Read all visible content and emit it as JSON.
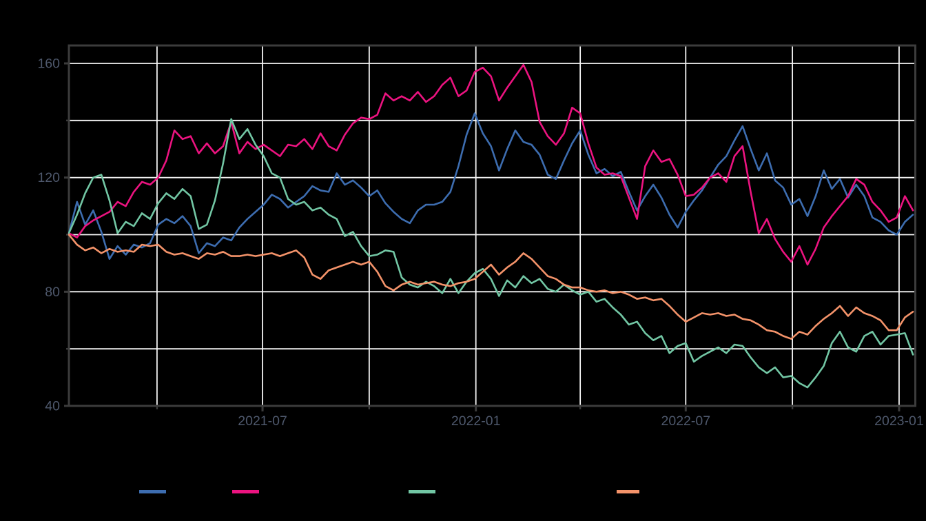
{
  "figure": {
    "background_color": "#000000",
    "grid_color": "#f5f5f5",
    "spine_color": "#3c3c3c",
    "tick_label_color": "#4e586c"
  },
  "chart_data": {
    "type": "line",
    "title": "",
    "x_axis": {
      "tick_labels": [
        "2021-07",
        "2022-01",
        "2022-07",
        "2023-01"
      ],
      "tick_days": [
        167,
        351,
        532,
        716
      ],
      "minor_tick_days": [
        76,
        259,
        441,
        624
      ],
      "start_day": 0,
      "end_day": 730,
      "sample_step_days": 7
    },
    "y_axis": {
      "tick_labels": [
        "40",
        "80",
        "120",
        "160"
      ],
      "tick_values": [
        40,
        80,
        120,
        160
      ],
      "minor_tick_values": [
        60,
        100,
        140
      ],
      "range": [
        40,
        166.4
      ]
    },
    "grid": "on",
    "legend": {
      "position": "bottom",
      "items": [
        {
          "label": "",
          "color": "#3d6db0",
          "swatch_x": 202,
          "swatch_w": 39
        },
        {
          "label": "",
          "color": "#ec1380",
          "swatch_x": 337,
          "swatch_w": 39
        },
        {
          "label": "",
          "color": "#72c6a4",
          "swatch_x": 593,
          "swatch_w": 39
        },
        {
          "label": "",
          "color": "#f4936a",
          "swatch_x": 895,
          "swatch_w": 33
        }
      ]
    },
    "series": [
      {
        "name": "series-blue",
        "color": "#3d6db0",
        "values": [
          100.5,
          111.5,
          103.5,
          108.5,
          101,
          91.5,
          96,
          93,
          96.5,
          95.5,
          97,
          103.5,
          105.5,
          104,
          106.5,
          103,
          93.5,
          97,
          96,
          99,
          98,
          102.5,
          105.5,
          108,
          110.5,
          114,
          112.5,
          109.5,
          111.5,
          113.5,
          117,
          115.5,
          115,
          121.5,
          117.5,
          119,
          116.5,
          113.5,
          115.5,
          111,
          108,
          105.5,
          104,
          108.5,
          110.5,
          110.5,
          111.5,
          115,
          124,
          135,
          142.5,
          135.5,
          131,
          122.5,
          130,
          136.5,
          132.5,
          131.5,
          128,
          121,
          119.5,
          126,
          132,
          136.5,
          128,
          121.5,
          123,
          120.5,
          122,
          115,
          108.5,
          113.5,
          117.5,
          113,
          107,
          102.5,
          108,
          112,
          115.5,
          120,
          124.5,
          127.5,
          133,
          138,
          130,
          122.5,
          128.5,
          119,
          116.5,
          110.5,
          112.5,
          106.5,
          113.5,
          122.5,
          116,
          119.5,
          113,
          117.5,
          113.5,
          106,
          104.5,
          101.5,
          100,
          104.5,
          107
        ]
      },
      {
        "name": "series-magenta",
        "color": "#ec1380",
        "values": [
          100.5,
          99,
          103,
          105,
          106.5,
          108,
          111.5,
          110,
          115,
          118.5,
          117.5,
          120,
          126,
          136.5,
          133.5,
          134.5,
          128.5,
          132,
          128.5,
          131,
          139.5,
          128.5,
          132.5,
          130,
          131.5,
          129.5,
          127.5,
          131.5,
          131,
          133.5,
          130,
          135.5,
          131,
          129.5,
          135,
          139,
          141,
          140.5,
          142,
          149.5,
          147,
          148.5,
          147,
          150,
          146.5,
          148.5,
          152.5,
          155,
          148.5,
          150.5,
          157,
          158.5,
          155.5,
          147,
          151.5,
          155.5,
          159.5,
          153.5,
          139.5,
          134.5,
          131.5,
          135.5,
          144.5,
          142.5,
          132,
          123.5,
          121,
          121.5,
          120.5,
          113,
          105.5,
          124,
          129.5,
          125.5,
          126.5,
          121,
          113.5,
          114,
          116.5,
          120,
          121.5,
          118.5,
          127.5,
          131,
          115,
          100.5,
          105.5,
          98.5,
          94,
          90.5,
          96,
          89.5,
          95,
          102.5,
          106.5,
          110,
          113.5,
          119.5,
          117.5,
          111.5,
          108.5,
          104.5,
          106,
          113.5,
          108.5
        ]
      },
      {
        "name": "series-green",
        "color": "#72c6a4",
        "values": [
          100.5,
          107,
          114.5,
          120,
          121,
          112,
          100.5,
          104.5,
          103,
          107.5,
          105.5,
          111,
          114.5,
          112.5,
          116,
          113.5,
          102,
          103.5,
          112,
          125,
          140.5,
          133.5,
          137,
          131.5,
          127.5,
          121.5,
          120,
          112.5,
          110.5,
          111.5,
          108.5,
          109.5,
          107,
          105.5,
          99.5,
          101,
          96,
          92.5,
          93,
          94.5,
          94,
          85,
          82.5,
          81.5,
          83.5,
          82,
          79.5,
          84.5,
          79.5,
          83.5,
          86.5,
          88,
          84.5,
          78.5,
          84,
          81.5,
          85.5,
          83,
          84.5,
          81,
          80,
          82.5,
          80.5,
          79,
          80,
          76.5,
          77.5,
          74.5,
          72,
          68.5,
          69.5,
          65.5,
          63,
          64.5,
          58.5,
          61,
          62,
          55.5,
          57.5,
          59,
          60.5,
          58.5,
          61.5,
          61,
          57,
          53.5,
          51.5,
          53.5,
          50,
          50.5,
          48,
          46.5,
          50,
          54,
          62,
          66,
          60.5,
          59,
          64.5,
          66,
          61.5,
          64.5,
          65,
          65.5,
          58
        ]
      },
      {
        "name": "series-orange",
        "color": "#f4936a",
        "values": [
          100,
          96.5,
          94.5,
          95.5,
          93.5,
          95,
          94,
          94.5,
          94,
          96.5,
          96,
          96.5,
          94,
          93,
          93.5,
          92.5,
          91.5,
          93.5,
          93,
          94,
          92.5,
          92.5,
          93,
          92.5,
          93,
          93.5,
          92.5,
          93.5,
          94.5,
          92,
          86,
          84.5,
          87.5,
          88.5,
          89.5,
          90.5,
          89.5,
          90.5,
          87,
          82,
          80.5,
          82.5,
          83.5,
          82.5,
          83,
          83.5,
          82.5,
          82,
          83,
          83.5,
          84.5,
          87,
          89.5,
          86,
          88.5,
          90.5,
          93.5,
          91.5,
          88.5,
          85.5,
          84.5,
          82.5,
          81.5,
          81.5,
          80.5,
          80,
          80.5,
          79.5,
          80,
          79,
          77.5,
          78,
          77,
          77.5,
          75,
          72,
          69.5,
          71,
          72.5,
          72,
          72.5,
          71.5,
          72,
          70.5,
          70,
          68.5,
          66.5,
          66,
          64.5,
          63.5,
          66,
          65,
          68,
          70.5,
          72.5,
          75,
          71.5,
          74.5,
          72.5,
          71.5,
          70,
          66.5,
          66.5,
          71,
          73
        ]
      }
    ]
  }
}
